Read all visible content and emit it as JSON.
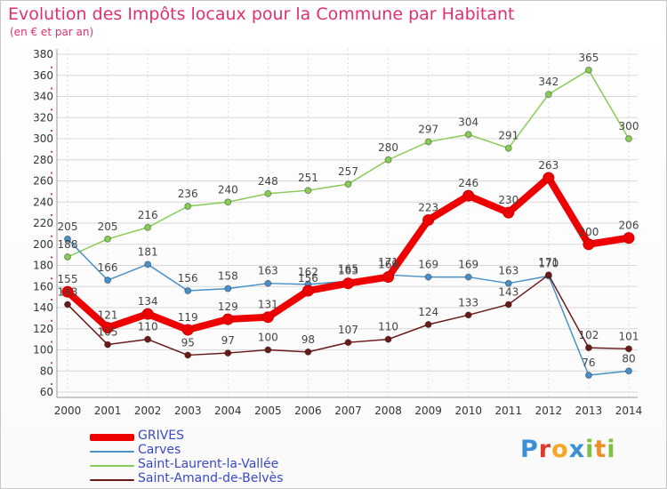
{
  "chart_data": {
    "type": "line",
    "title": "Evolution des Impôts locaux pour la Commune par Habitant",
    "subtitle": "(en € et par an)",
    "x": [
      "2000",
      "2001",
      "2002",
      "2003",
      "2004",
      "2005",
      "2006",
      "2007",
      "2008",
      "2009",
      "2010",
      "2011",
      "2012",
      "2013",
      "2014"
    ],
    "ylim": [
      60,
      380
    ],
    "yticks": [
      60,
      80,
      100,
      120,
      140,
      160,
      180,
      200,
      220,
      240,
      260,
      280,
      300,
      320,
      340,
      360,
      380
    ],
    "grid": true,
    "legend_position": "bottom-left",
    "series": [
      {
        "name": "GRIVES",
        "color": "#ee0000",
        "values": [
          155,
          121,
          134,
          119,
          129,
          131,
          156,
          163,
          169,
          223,
          246,
          230,
          263,
          200,
          206
        ]
      },
      {
        "name": "Carves",
        "color": "#4a90c8",
        "values": [
          205,
          166,
          181,
          156,
          158,
          163,
          162,
          165,
          171,
          169,
          169,
          163,
          170,
          76,
          80
        ]
      },
      {
        "name": "Saint-Laurent-la-Vallée",
        "color": "#88cc55",
        "values": [
          188,
          205,
          216,
          236,
          240,
          248,
          251,
          257,
          280,
          297,
          304,
          291,
          342,
          365,
          300
        ]
      },
      {
        "name": "Saint-Amand-de-Belvès",
        "color": "#6b1a1a",
        "values": [
          143,
          105,
          110,
          95,
          97,
          100,
          98,
          107,
          110,
          124,
          133,
          143,
          171,
          102,
          101
        ]
      }
    ]
  },
  "brand": {
    "logo_text": "Proxiti"
  }
}
